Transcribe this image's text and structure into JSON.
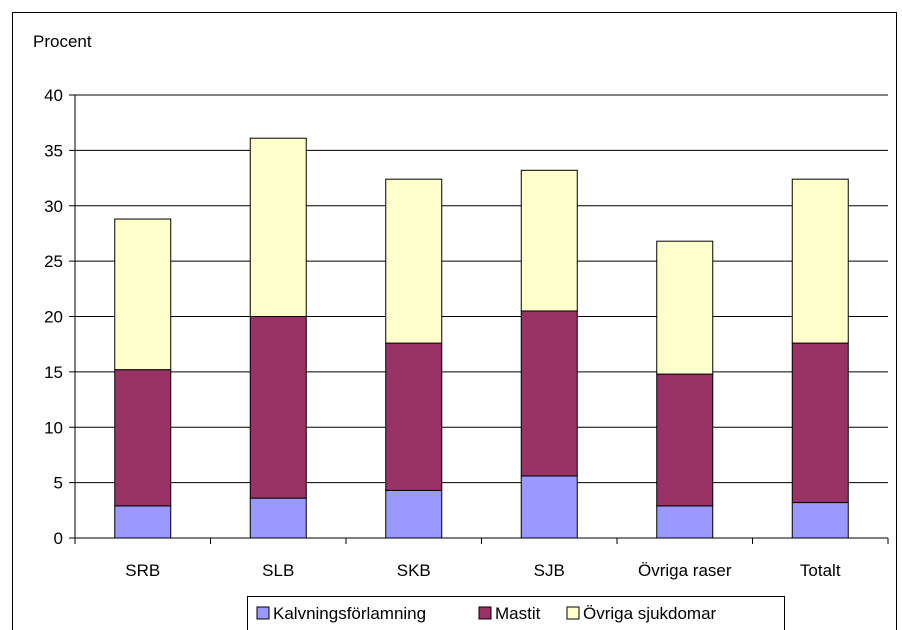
{
  "chart_data": {
    "type": "bar",
    "stacked": true,
    "ylabel": "Procent",
    "ylim": [
      0,
      40
    ],
    "yticks": [
      0,
      5,
      10,
      15,
      20,
      25,
      30,
      35,
      40
    ],
    "grid": true,
    "legend_position": "bottom",
    "categories": [
      "SRB",
      "SLB",
      "SKB",
      "SJB",
      "Övriga raser",
      "Totalt"
    ],
    "series": [
      {
        "name": "Kalvningsförlamning",
        "color": "#9999ff",
        "values": [
          2.9,
          3.6,
          4.3,
          5.6,
          2.9,
          3.2
        ]
      },
      {
        "name": "Mastit",
        "color": "#993366",
        "values": [
          12.3,
          16.4,
          13.3,
          14.9,
          11.9,
          14.4
        ]
      },
      {
        "name": "Övriga sjukdomar",
        "color": "#ffffcc",
        "values": [
          13.6,
          16.1,
          14.8,
          12.7,
          12.0,
          14.8
        ]
      }
    ]
  }
}
